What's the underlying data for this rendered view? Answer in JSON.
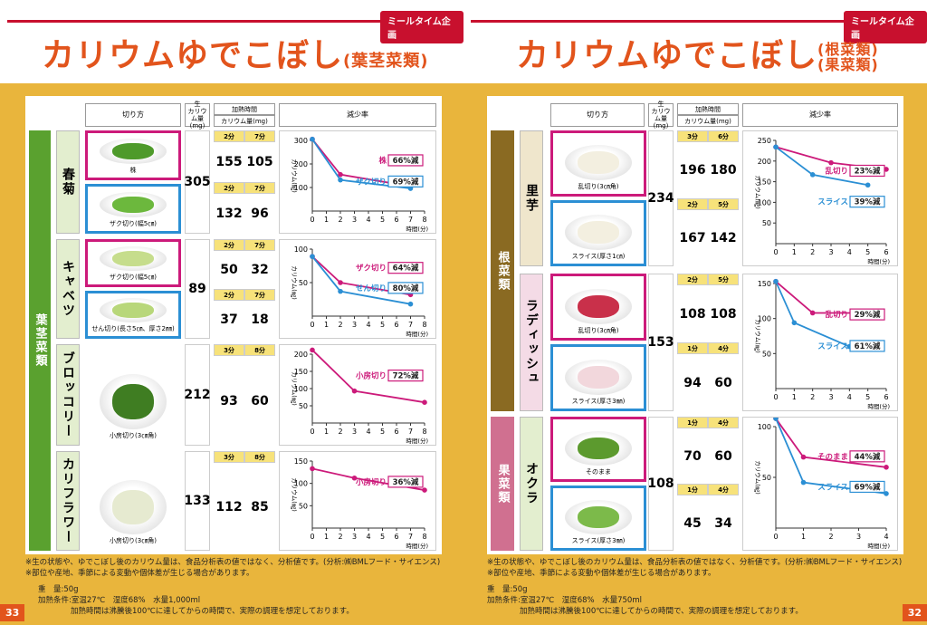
{
  "left": {
    "badge": "ミールタイム企画",
    "title_main": "カリウムゆでこぼし",
    "title_sub": "(葉茎菜類)",
    "category": "葉茎菜類",
    "col_cut": "切り方",
    "col_raw_1": "生",
    "col_raw_2": "カリウム量 (mg)",
    "col_heat": "加熱時間",
    "col_k": "カリウム量(mg)",
    "col_rate": "減少率",
    "vegetables": [
      {
        "name": "春菊",
        "raw": "305",
        "photos": [
          {
            "caption": "株",
            "color": "pink"
          },
          {
            "caption": "ザク切り(幅5㎝)",
            "color": "blue"
          }
        ],
        "rows": [
          {
            "t1": "2分",
            "t2": "7分",
            "v1": "155",
            "v2": "105"
          },
          {
            "t1": "2分",
            "t2": "7分",
            "v1": "132",
            "v2": "96"
          }
        ],
        "labels": [
          {
            "name": "株",
            "rate": "66%減",
            "color": "pink"
          },
          {
            "name": "ザク切り",
            "rate": "69%減",
            "color": "blue"
          }
        ]
      },
      {
        "name": "キャベツ",
        "raw": "89",
        "photos": [
          {
            "caption": "ザク切り(幅5㎝)",
            "color": "pink"
          },
          {
            "caption": "せん切り(長さ5㎝、厚さ2㎜)",
            "color": "blue"
          }
        ],
        "rows": [
          {
            "t1": "2分",
            "t2": "7分",
            "v1": "50",
            "v2": "32"
          },
          {
            "t1": "2分",
            "t2": "7分",
            "v1": "37",
            "v2": "18"
          }
        ],
        "labels": [
          {
            "name": "ザク切り",
            "rate": "64%減",
            "color": "pink"
          },
          {
            "name": "せん切り",
            "rate": "80%減",
            "color": "blue"
          }
        ]
      },
      {
        "name": "ブロッコリー",
        "raw": "212",
        "photos": [
          {
            "caption": "小房切り(3㎝角)",
            "color": "none"
          }
        ],
        "rows": [
          {
            "t1": "3分",
            "t2": "8分",
            "v1": "93",
            "v2": "60"
          }
        ],
        "labels": [
          {
            "name": "小房切り",
            "rate": "72%減",
            "color": "pink"
          }
        ]
      },
      {
        "name": "カリフラワー",
        "raw": "133",
        "photos": [
          {
            "caption": "小房切り(3㎝角)",
            "color": "none"
          }
        ],
        "rows": [
          {
            "t1": "3分",
            "t2": "8分",
            "v1": "112",
            "v2": "85"
          }
        ],
        "labels": [
          {
            "name": "小房切り",
            "rate": "36%減",
            "color": "pink"
          }
        ]
      }
    ],
    "x_unit": "時間(分)",
    "y_unit": "カリウム(㎎)",
    "notes": [
      "※生の状態や、ゆでこぼし後のカリウム量は、食品分析表の値ではなく、分析値です。(分析:㈱BMLフード・サイエンス)",
      "※部位や産地、季節による変動や個体差が生じる場合があります。"
    ],
    "cond_weight": "重　量:50g",
    "cond_heat": "加熱条件:室温27℃　湿度68%　水量1,000ml",
    "cond_time": "加熱時間は沸騰後100℃に達してからの時間で、実際の調理を想定しております。",
    "page_number": "33"
  },
  "right": {
    "badge": "ミールタイム企画",
    "title_main": "カリウムゆでこぼし",
    "title_sub_1": "(根菜類)",
    "title_sub_2": "(果菜類)",
    "cat_root": "根菜類",
    "cat_fruit": "果菜類",
    "col_cut": "切り方",
    "col_raw_1": "生",
    "col_raw_2": "カリウム量 (mg)",
    "col_heat": "加熱時間",
    "col_k": "カリウム量(mg)",
    "col_rate": "減少率",
    "vegetables": [
      {
        "name": "里芋",
        "raw": "234",
        "photos": [
          {
            "caption": "乱切り(3㎝角)",
            "color": "pink"
          },
          {
            "caption": "スライス(厚さ1㎝)",
            "color": "blue"
          }
        ],
        "rows": [
          {
            "t1": "3分",
            "t2": "6分",
            "v1": "196",
            "v2": "180"
          },
          {
            "t1": "2分",
            "t2": "5分",
            "v1": "167",
            "v2": "142"
          }
        ],
        "labels": [
          {
            "name": "乱切り",
            "rate": "23%減",
            "color": "pink"
          },
          {
            "name": "スライス",
            "rate": "39%減",
            "color": "blue"
          }
        ]
      },
      {
        "name": "ラディッシュ",
        "raw": "153",
        "photos": [
          {
            "caption": "乱切り(3㎝角)",
            "color": "pink"
          },
          {
            "caption": "スライス(厚さ3㎜)",
            "color": "blue"
          }
        ],
        "rows": [
          {
            "t1": "2分",
            "t2": "5分",
            "v1": "108",
            "v2": "108"
          },
          {
            "t1": "1分",
            "t2": "4分",
            "v1": "94",
            "v2": "60"
          }
        ],
        "labels": [
          {
            "name": "乱切り",
            "rate": "29%減",
            "color": "pink"
          },
          {
            "name": "スライス",
            "rate": "61%減",
            "color": "blue"
          }
        ]
      },
      {
        "name": "オクラ",
        "raw": "108",
        "photos": [
          {
            "caption": "そのまま",
            "color": "pink"
          },
          {
            "caption": "スライス(厚さ3㎜)",
            "color": "blue"
          }
        ],
        "rows": [
          {
            "t1": "1分",
            "t2": "4分",
            "v1": "70",
            "v2": "60"
          },
          {
            "t1": "1分",
            "t2": "4分",
            "v1": "45",
            "v2": "34"
          }
        ],
        "labels": [
          {
            "name": "そのまま",
            "rate": "44%減",
            "color": "pink"
          },
          {
            "name": "スライス",
            "rate": "69%減",
            "color": "blue"
          }
        ]
      }
    ],
    "x_unit": "時間(分)",
    "y_unit": "カリウム(㎎)",
    "notes": [
      "※生の状態や、ゆでこぼし後のカリウム量は、食品分析表の値ではなく、分析値です。(分析:㈱BMLフード・サイエンス)",
      "※部位や産地、季節による変動や個体差が生じる場合があります。"
    ],
    "cond_weight": "重　量:50g",
    "cond_heat": "加熱条件:室温27℃　湿度68%　水量750ml",
    "cond_time": "加熱時間は沸騰後100℃に達してからの時間で、実際の調理を想定しております。",
    "page_number": "32"
  },
  "colors": {
    "pink": "#cc1a7a",
    "blue": "#2b8fd4",
    "title": "#e2541c",
    "green_cat": "#5aa12f",
    "brown_cat": "#8a6a22",
    "pink_cat": "#d07090"
  },
  "chart_data": [
    {
      "type": "line",
      "id": "shungiku",
      "xlim": [
        0,
        8
      ],
      "ylim": [
        0,
        300
      ],
      "xticks": [
        0,
        1,
        2,
        3,
        4,
        5,
        6,
        7,
        8
      ],
      "yticks": [
        100,
        200,
        300
      ],
      "series": [
        {
          "name": "株",
          "x": [
            0,
            2,
            7
          ],
          "values": [
            305,
            155,
            105
          ]
        },
        {
          "name": "ザク切り",
          "x": [
            0,
            2,
            7
          ],
          "values": [
            305,
            132,
            96
          ]
        }
      ]
    },
    {
      "type": "line",
      "id": "cabbage",
      "xlim": [
        0,
        8
      ],
      "ylim": [
        0,
        100
      ],
      "xticks": [
        0,
        1,
        2,
        3,
        4,
        5,
        6,
        7,
        8
      ],
      "yticks": [
        50,
        100
      ],
      "series": [
        {
          "name": "ザク切り",
          "x": [
            0,
            2,
            7
          ],
          "values": [
            89,
            50,
            32
          ]
        },
        {
          "name": "せん切り",
          "x": [
            0,
            2,
            7
          ],
          "values": [
            89,
            37,
            18
          ]
        }
      ]
    },
    {
      "type": "line",
      "id": "broccoli",
      "xlim": [
        0,
        8
      ],
      "ylim": [
        0,
        200
      ],
      "xticks": [
        0,
        1,
        2,
        3,
        4,
        5,
        6,
        7,
        8
      ],
      "yticks": [
        50,
        100,
        150,
        200
      ],
      "series": [
        {
          "name": "小房切り",
          "x": [
            0,
            3,
            8
          ],
          "values": [
            212,
            93,
            60
          ]
        }
      ]
    },
    {
      "type": "line",
      "id": "cauliflower",
      "xlim": [
        0,
        8
      ],
      "ylim": [
        0,
        150
      ],
      "xticks": [
        0,
        1,
        2,
        3,
        4,
        5,
        6,
        7,
        8
      ],
      "yticks": [
        50,
        100,
        150
      ],
      "series": [
        {
          "name": "小房切り",
          "x": [
            0,
            3,
            8
          ],
          "values": [
            133,
            112,
            85
          ]
        }
      ]
    },
    {
      "type": "line",
      "id": "satoimo",
      "xlim": [
        0,
        6
      ],
      "ylim": [
        0,
        250
      ],
      "xticks": [
        0,
        1,
        2,
        3,
        4,
        5,
        6
      ],
      "yticks": [
        50,
        100,
        150,
        200,
        250
      ],
      "series": [
        {
          "name": "乱切り",
          "x": [
            0,
            3,
            6
          ],
          "values": [
            234,
            196,
            180
          ]
        },
        {
          "name": "スライス",
          "x": [
            0,
            2,
            5
          ],
          "values": [
            234,
            167,
            142
          ]
        }
      ]
    },
    {
      "type": "line",
      "id": "radish",
      "xlim": [
        0,
        6
      ],
      "ylim": [
        0,
        150
      ],
      "xticks": [
        0,
        1,
        2,
        3,
        4,
        5,
        6
      ],
      "yticks": [
        50,
        100,
        150
      ],
      "series": [
        {
          "name": "乱切り",
          "x": [
            0,
            2,
            5
          ],
          "values": [
            153,
            108,
            108
          ]
        },
        {
          "name": "スライス",
          "x": [
            0,
            1,
            4
          ],
          "values": [
            153,
            94,
            60
          ]
        }
      ]
    },
    {
      "type": "line",
      "id": "okra",
      "xlim": [
        0,
        4
      ],
      "ylim": [
        0,
        100
      ],
      "xticks": [
        0,
        1,
        2,
        3,
        4
      ],
      "yticks": [
        50,
        100
      ],
      "series": [
        {
          "name": "そのまま",
          "x": [
            0,
            1,
            4
          ],
          "values": [
            108,
            70,
            60
          ]
        },
        {
          "name": "スライス",
          "x": [
            0,
            1,
            4
          ],
          "values": [
            108,
            45,
            34
          ]
        }
      ]
    }
  ]
}
